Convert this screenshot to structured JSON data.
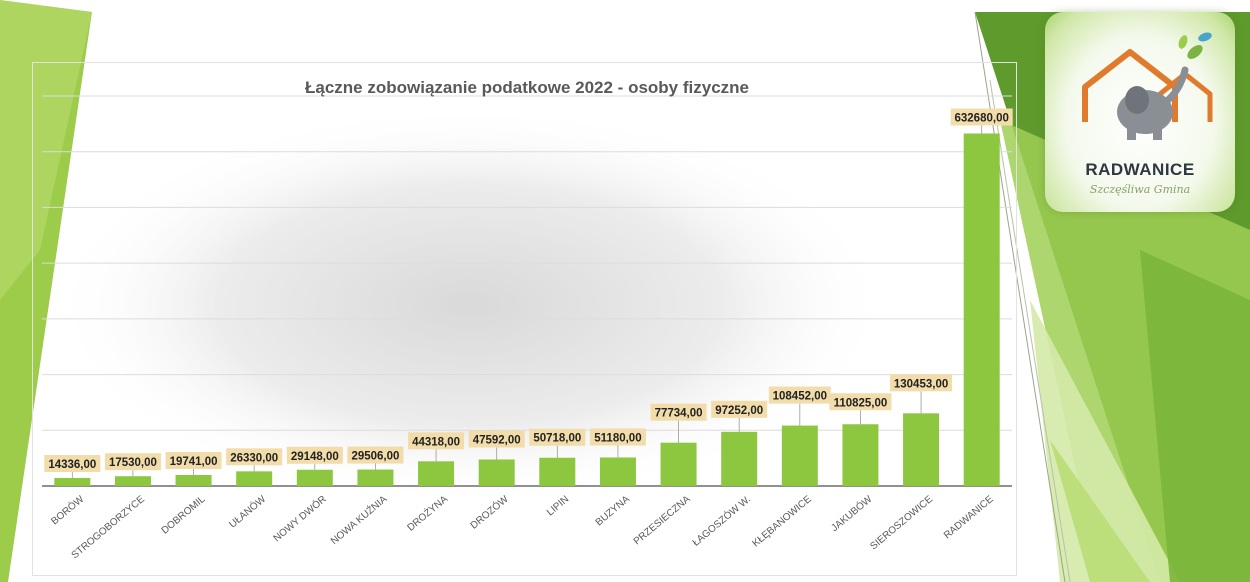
{
  "theme": {
    "bar_color": "#8dc63f",
    "label_bg": "#f1dcaa",
    "accent_green": "#7cb342",
    "dark_green": "#5a8a2a"
  },
  "logo": {
    "name": "RADWANICE",
    "tagline": "Szczęśliwa Gmina",
    "icon": "elephant-house-icon"
  },
  "chart_data": {
    "type": "bar",
    "title": "Łączne zobowiązanie podatkowe 2022 - osoby fizyczne",
    "categories": [
      "BORÓW",
      "STROGOBORZYCE",
      "DOBROMIL",
      "UŁANÓW",
      "NOWY DWÓR",
      "NOWA KUŹNIA",
      "DROŻYNA",
      "DROZÓW",
      "LIPIN",
      "BUZYNA",
      "PRZESIECZNA",
      "ŁAGOSZÓW W.",
      "KŁĘBANOWICE",
      "JAKUBÓW",
      "SIEROSZOWICE",
      "RADWANICE"
    ],
    "values": [
      14336,
      17530,
      19741,
      26330,
      29148,
      29506,
      44318,
      47592,
      50718,
      51180,
      77734,
      97252,
      108452,
      110825,
      130453,
      632680
    ],
    "data_labels": [
      "14336,00",
      "17530,00",
      "19741,00",
      "26330,00",
      "29148,00",
      "29506,00",
      "44318,00",
      "47592,00",
      "50718,00",
      "51180,00",
      "77734,00",
      "97252,00",
      "108452,00",
      "110825,00",
      "130453,00",
      "632680,00"
    ],
    "ylim": [
      0,
      700000
    ],
    "grid": true,
    "legend": "none"
  }
}
